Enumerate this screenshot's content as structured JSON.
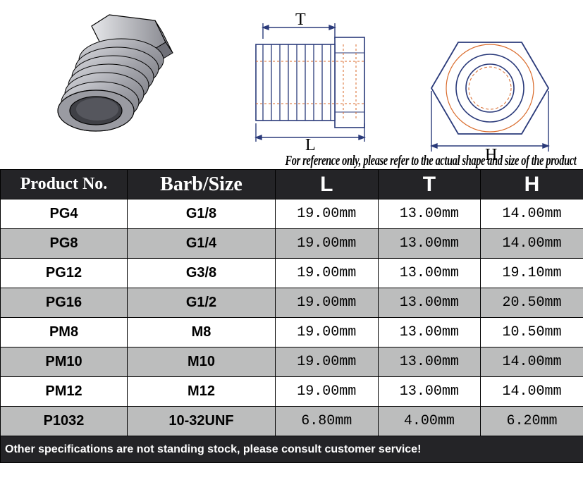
{
  "diagram": {
    "labels": {
      "T": "T",
      "L": "L",
      "H": "H"
    },
    "line_color": "#2a3a7a",
    "hatch_color": "#d96a2a",
    "fill_gray": "#a9aab0",
    "fill_gray_light": "#c6c7cc",
    "bg": "#ffffff"
  },
  "disclaimer": "For reference only, please refer to the actual shape and size of the product",
  "table": {
    "header_bg": "#242427",
    "header_fg": "#ffffff",
    "row_even_bg": "#ffffff",
    "row_odd_bg": "#bcbdbd",
    "border_color": "#000000",
    "columns": [
      {
        "key": "product",
        "label": "Product No.",
        "class": "hdr-product"
      },
      {
        "key": "barb",
        "label": "Barb/Size",
        "class": "hdr-barb"
      },
      {
        "key": "L",
        "label": "L",
        "class": "hdr-dim"
      },
      {
        "key": "T",
        "label": "T",
        "class": "hdr-dim"
      },
      {
        "key": "H",
        "label": "H",
        "class": "hdr-dim"
      }
    ],
    "rows": [
      {
        "product": "PG4",
        "barb": "G1/8",
        "L": "19.00mm",
        "T": "13.00mm",
        "H": "14.00mm"
      },
      {
        "product": "PG8",
        "barb": "G1/4",
        "L": "19.00mm",
        "T": "13.00mm",
        "H": "14.00mm"
      },
      {
        "product": "PG12",
        "barb": "G3/8",
        "L": "19.00mm",
        "T": "13.00mm",
        "H": "19.10mm"
      },
      {
        "product": "PG16",
        "barb": "G1/2",
        "L": "19.00mm",
        "T": "13.00mm",
        "H": "20.50mm"
      },
      {
        "product": "PM8",
        "barb": "M8",
        "L": "19.00mm",
        "T": "13.00mm",
        "H": "10.50mm"
      },
      {
        "product": "PM10",
        "barb": "M10",
        "L": "19.00mm",
        "T": "13.00mm",
        "H": "14.00mm"
      },
      {
        "product": "PM12",
        "barb": "M12",
        "L": "19.00mm",
        "T": "13.00mm",
        "H": "14.00mm"
      },
      {
        "product": "P1032",
        "barb": "10-32UNF",
        "L": "6.80mm",
        "T": "4.00mm",
        "H": "6.20mm"
      }
    ],
    "cell_font_size": 20,
    "product_font_weight": "bold",
    "barb_font_weight": "bold",
    "footer": "Other specifications are not standing stock, please consult customer service!",
    "footer_bg": "#242427",
    "footer_fg": "#ffffff",
    "footer_font_size": 16
  }
}
